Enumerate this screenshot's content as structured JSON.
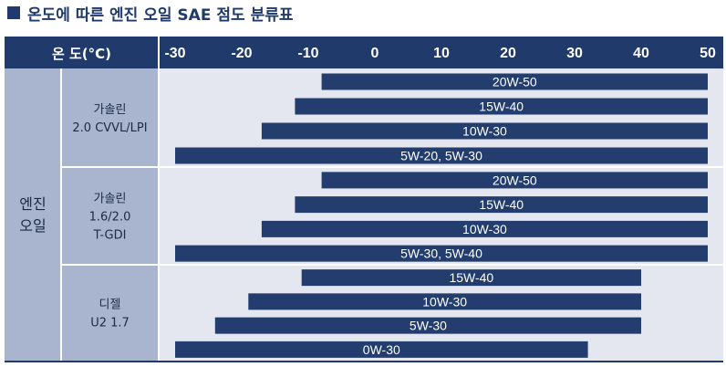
{
  "page": {
    "title": "온도에 따른 엔진 오일 SAE 점도 분류표"
  },
  "chart_data": {
    "type": "bar",
    "orientation": "horizontal-range",
    "header_label": "온 도(°C)",
    "x_ticks": [
      -30,
      -20,
      -10,
      0,
      10,
      20,
      30,
      40,
      50
    ],
    "xlim": [
      -30,
      50
    ],
    "category": "엔진 오일",
    "groups": [
      {
        "label": "가솔린 2.0 CVVL/LPI",
        "label_lines": [
          "가솔린",
          "2.0 CVVL/LPI"
        ],
        "bars": [
          {
            "label": "20W-50",
            "min": -8,
            "max": 50
          },
          {
            "label": "15W-40",
            "min": -12,
            "max": 50
          },
          {
            "label": "10W-30",
            "min": -17,
            "max": 50
          },
          {
            "label": "5W-20, 5W-30",
            "min": -30,
            "max": 50
          }
        ]
      },
      {
        "label": "가솔린 1.6/2.0 T-GDI",
        "label_lines": [
          "가솔린",
          "1.6/2.0",
          "T-GDI"
        ],
        "bars": [
          {
            "label": "20W-50",
            "min": -8,
            "max": 50
          },
          {
            "label": "15W-40",
            "min": -12,
            "max": 50
          },
          {
            "label": "10W-30",
            "min": -17,
            "max": 50
          },
          {
            "label": "5W-30, 5W-40",
            "min": -30,
            "max": 50
          }
        ]
      },
      {
        "label": "디젤 U2 1.7",
        "label_lines": [
          "디젤",
          "U2 1.7"
        ],
        "bars": [
          {
            "label": "15W-40",
            "min": -11,
            "max": 40
          },
          {
            "label": "10W-30",
            "min": -19,
            "max": 40
          },
          {
            "label": "5W-30",
            "min": -24,
            "max": 40
          },
          {
            "label": "0W-30",
            "min": -30,
            "max": 32
          }
        ]
      }
    ],
    "colors": {
      "bar": "#223d6e",
      "header": "#1f3a6b",
      "label_column": "#a9b5cf",
      "plot_background": "#e4e7ef"
    }
  }
}
